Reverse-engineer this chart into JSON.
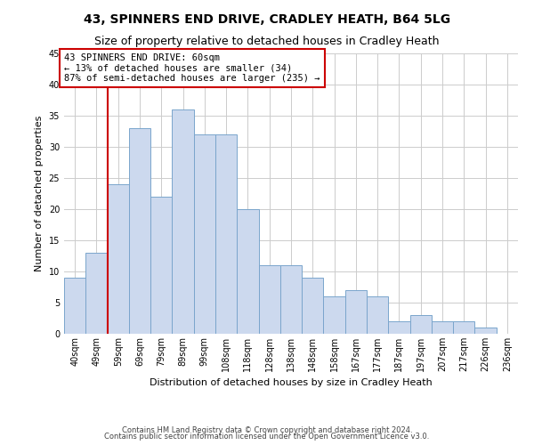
{
  "title": "43, SPINNERS END DRIVE, CRADLEY HEATH, B64 5LG",
  "subtitle": "Size of property relative to detached houses in Cradley Heath",
  "xlabel": "Distribution of detached houses by size in Cradley Heath",
  "ylabel": "Number of detached properties",
  "footer1": "Contains HM Land Registry data © Crown copyright and database right 2024.",
  "footer2": "Contains public sector information licensed under the Open Government Licence v3.0.",
  "categories": [
    "40sqm",
    "49sqm",
    "59sqm",
    "69sqm",
    "79sqm",
    "89sqm",
    "99sqm",
    "108sqm",
    "118sqm",
    "128sqm",
    "138sqm",
    "148sqm",
    "158sqm",
    "167sqm",
    "177sqm",
    "187sqm",
    "197sqm",
    "207sqm",
    "217sqm",
    "226sqm",
    "236sqm"
  ],
  "values": [
    9,
    13,
    24,
    33,
    22,
    36,
    32,
    32,
    20,
    11,
    11,
    9,
    6,
    7,
    6,
    2,
    3,
    2,
    2,
    1,
    0
  ],
  "bar_color": "#ccd9ee",
  "bar_edge_color": "#7aa5cc",
  "ylim": [
    0,
    45
  ],
  "yticks": [
    0,
    5,
    10,
    15,
    20,
    25,
    30,
    35,
    40,
    45
  ],
  "annotation_text": "43 SPINNERS END DRIVE: 60sqm\n← 13% of detached houses are smaller (34)\n87% of semi-detached houses are larger (235) →",
  "annotation_box_color": "#ffffff",
  "annotation_box_edge_color": "#cc0000",
  "line_color": "#cc0000",
  "background_color": "#ffffff",
  "grid_color": "#cccccc",
  "title_fontsize": 10,
  "subtitle_fontsize": 9,
  "axis_label_fontsize": 8,
  "tick_fontsize": 7,
  "annotation_fontsize": 7.5,
  "footer_fontsize": 6
}
